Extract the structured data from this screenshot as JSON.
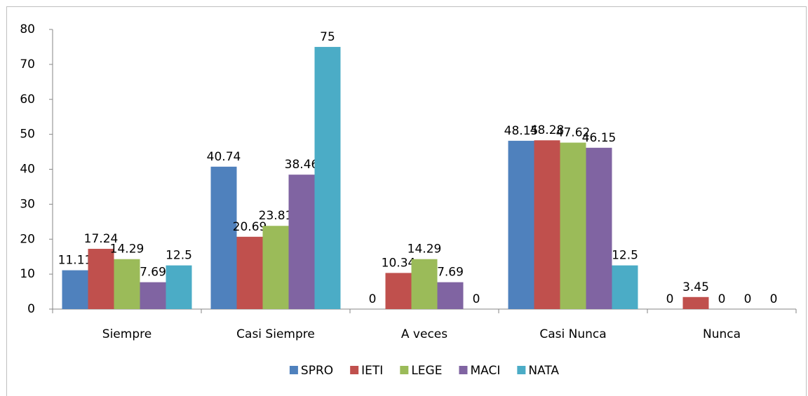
{
  "chart_data": {
    "type": "bar",
    "categories": [
      "Siempre",
      "Casi Siempre",
      "A veces",
      "Casi Nunca",
      "Nunca"
    ],
    "series": [
      {
        "name": "SPRO",
        "color": "#4f81bd",
        "values": [
          11.11,
          40.74,
          0,
          48.15,
          0
        ]
      },
      {
        "name": "IETI",
        "color": "#c0504d",
        "values": [
          17.24,
          20.69,
          10.34,
          48.28,
          3.45
        ]
      },
      {
        "name": "LEGE",
        "color": "#9bbb59",
        "values": [
          14.29,
          23.81,
          14.29,
          47.62,
          0
        ]
      },
      {
        "name": "MACI",
        "color": "#8064a2",
        "values": [
          7.69,
          38.46,
          7.69,
          46.15,
          0
        ]
      },
      {
        "name": "NATA",
        "color": "#4bacc6",
        "values": [
          12.5,
          75,
          0,
          12.5,
          0
        ]
      }
    ],
    "ylim": [
      0,
      80
    ],
    "yticks": [
      0,
      10,
      20,
      30,
      40,
      50,
      60,
      70,
      80
    ],
    "grid": false,
    "legend": "bottom"
  }
}
